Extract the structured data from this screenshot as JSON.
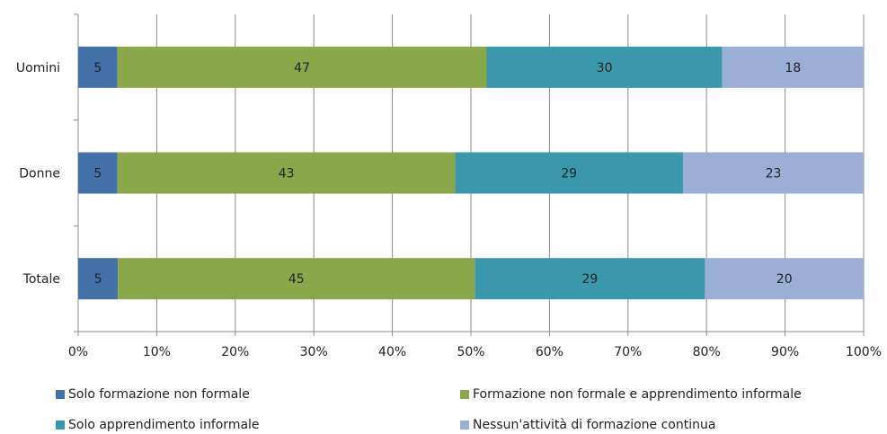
{
  "chart_data": {
    "type": "bar",
    "orientation": "horizontal",
    "stacked": "percent",
    "categories": [
      "Uomini",
      "Donne",
      "Totale"
    ],
    "series": [
      {
        "name": "Solo formazione non formale",
        "color": "#4472a8",
        "values": [
          5,
          5,
          5
        ],
        "labels": [
          "5",
          "5",
          "5"
        ]
      },
      {
        "name": "Formazione non formale e apprendimento informale",
        "color": "#8aa84a",
        "values": [
          47,
          43,
          45
        ],
        "labels": [
          "47",
          "43",
          "45"
        ]
      },
      {
        "name": "Solo apprendimento informale",
        "color": "#3b98ac",
        "values": [
          30,
          29,
          29
        ],
        "labels": [
          "30",
          "29",
          "29"
        ]
      },
      {
        "name": "Nessun'attività di formazione continua",
        "color": "#9aaed6",
        "values": [
          18,
          23,
          20
        ],
        "labels": [
          "18",
          "23",
          "20"
        ]
      }
    ],
    "xlim": [
      0,
      100
    ],
    "x_ticks": [
      "0%",
      "10%",
      "20%",
      "30%",
      "40%",
      "50%",
      "60%",
      "70%",
      "80%",
      "90%",
      "100%"
    ],
    "grid": "vertical",
    "legend": "bottom"
  }
}
